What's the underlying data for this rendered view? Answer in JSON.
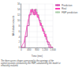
{
  "chart_data": {
    "type": "line",
    "xlabel": "Time (min)",
    "ylabel": "Workstation counts",
    "xlim": [
      0,
      1600
    ],
    "ylim": [
      0,
      16
    ],
    "xticks": [
      0,
      400,
      800,
      1200,
      1600
    ],
    "yticks": [
      0,
      2,
      4,
      6,
      8,
      10,
      12,
      14,
      16
    ],
    "grid": true,
    "legend": "right",
    "annotations": [
      "The three curves shown correspond to the openings of the",
      "control positions predicted by the FMP, calculated by the model or",
      "effectively realized."
    ],
    "series": [
      {
        "name": "Prediction",
        "color": "#cc44aa",
        "x": [
          0,
          200,
          200,
          300,
          300,
          400,
          400,
          500,
          500,
          550,
          550,
          600,
          600,
          650,
          650,
          700,
          700,
          750,
          750,
          800,
          800,
          850,
          850,
          900,
          900,
          950,
          950,
          1000,
          1000,
          1050,
          1050,
          1100,
          1100,
          1150,
          1150,
          1200,
          1200,
          1250,
          1250,
          1300,
          1300,
          1350,
          1350,
          1400,
          1400,
          1500,
          1500,
          1600
        ],
        "values": [
          0,
          0,
          4,
          4,
          8,
          8,
          12,
          12,
          13,
          13,
          14,
          14,
          13,
          13,
          12,
          12,
          14,
          14,
          13,
          13,
          12,
          12,
          11,
          11,
          10,
          10,
          9,
          9,
          8,
          8,
          7,
          7,
          6,
          6,
          5,
          5,
          4,
          4,
          3,
          3,
          2,
          2,
          1,
          1,
          0,
          0,
          0,
          0
        ]
      },
      {
        "name": "Real",
        "color": "#ff44bb",
        "x": [
          0,
          150,
          200,
          250,
          300,
          350,
          400,
          430,
          460,
          490,
          520,
          550,
          580,
          610,
          640,
          670,
          700,
          730,
          760,
          790,
          820,
          850,
          880,
          910,
          940,
          970,
          1000,
          1030,
          1060,
          1090,
          1120,
          1150,
          1180,
          1210,
          1240,
          1270,
          1300,
          1350,
          1400,
          1450,
          1500,
          1550,
          1600
        ],
        "values": [
          0,
          2,
          4,
          6,
          8,
          10,
          11,
          12,
          13,
          14,
          13,
          14,
          13,
          12,
          13,
          14,
          13,
          12,
          13,
          12,
          11,
          12,
          11,
          10,
          9,
          8,
          9,
          8,
          7,
          6,
          7,
          6,
          5,
          4,
          5,
          4,
          3,
          2,
          2,
          1,
          0,
          0,
          0
        ]
      },
      {
        "name": "FMP prediction",
        "color": "#aaccaa",
        "x": [
          0,
          200,
          200,
          300,
          300,
          400,
          400,
          500,
          500,
          600,
          600,
          650,
          650,
          700,
          700,
          800,
          800,
          900,
          900,
          1000,
          1000,
          1100,
          1100,
          1200,
          1200,
          1300,
          1300,
          1400,
          1400,
          1500,
          1500,
          1600
        ],
        "values": [
          0,
          0,
          4,
          4,
          8,
          8,
          12,
          12,
          14,
          14,
          13,
          13,
          12,
          12,
          14,
          14,
          12,
          12,
          10,
          10,
          8,
          8,
          6,
          6,
          4,
          4,
          2,
          2,
          1,
          1,
          0,
          0
        ]
      }
    ]
  }
}
